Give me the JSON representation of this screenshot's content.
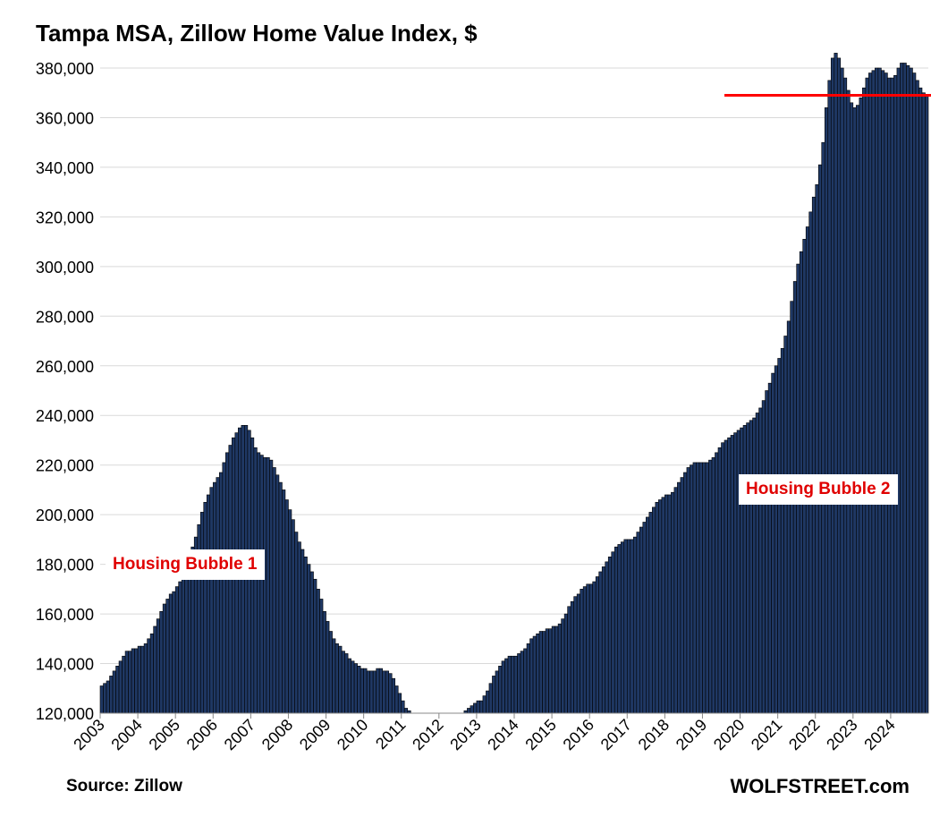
{
  "chart_data": {
    "type": "bar",
    "title": "Tampa MSA, Zillow Home Value Index, $",
    "xlabel": "",
    "ylabel": "",
    "ylim": [
      120000,
      380000
    ],
    "yticks": [
      "120,000",
      "140,000",
      "160,000",
      "180,000",
      "200,000",
      "220,000",
      "240,000",
      "260,000",
      "280,000",
      "300,000",
      "320,000",
      "340,000",
      "360,000",
      "380,000"
    ],
    "ytick_values": [
      120000,
      140000,
      160000,
      180000,
      200000,
      220000,
      240000,
      260000,
      280000,
      300000,
      320000,
      340000,
      360000,
      380000
    ],
    "xticks": [
      "2003",
      "2004",
      "2005",
      "2006",
      "2007",
      "2008",
      "2009",
      "2010",
      "2011",
      "2012",
      "2013",
      "2014",
      "2015",
      "2016",
      "2017",
      "2018",
      "2019",
      "2020",
      "2021",
      "2022",
      "2023",
      "2024"
    ],
    "grid": true,
    "start": "2003-01",
    "frequency": "monthly",
    "values_thousands": [
      131,
      132,
      133,
      135,
      137,
      139,
      141,
      143,
      145,
      145,
      146,
      146,
      147,
      147,
      148,
      150,
      152,
      155,
      158,
      161,
      164,
      166,
      168,
      169,
      171,
      173,
      175,
      178,
      182,
      187,
      191,
      196,
      201,
      205,
      208,
      211,
      213,
      215,
      217,
      221,
      225,
      228,
      231,
      233,
      235,
      236,
      236,
      234,
      231,
      227,
      225,
      224,
      223,
      223,
      222,
      219,
      216,
      213,
      210,
      206,
      202,
      198,
      193,
      189,
      186,
      183,
      180,
      177,
      174,
      170,
      166,
      161,
      157,
      153,
      150,
      148,
      147,
      145,
      144,
      142,
      141,
      140,
      139,
      138,
      138,
      137,
      137,
      137,
      138,
      138,
      137,
      137,
      136,
      134,
      131,
      128,
      125,
      122,
      121,
      120,
      119,
      118,
      117,
      116,
      116,
      115,
      115,
      115,
      115,
      115,
      115,
      115,
      115,
      116,
      118,
      120,
      121,
      122,
      123,
      124,
      125,
      125,
      127,
      129,
      132,
      135,
      137,
      139,
      141,
      142,
      143,
      143,
      143,
      144,
      145,
      146,
      148,
      150,
      151,
      152,
      153,
      153,
      154,
      154,
      155,
      155,
      156,
      158,
      160,
      163,
      165,
      167,
      168,
      170,
      171,
      172,
      172,
      173,
      175,
      177,
      179,
      181,
      183,
      185,
      187,
      188,
      189,
      190,
      190,
      190,
      191,
      193,
      195,
      197,
      199,
      201,
      203,
      205,
      206,
      207,
      208,
      208,
      209,
      211,
      213,
      215,
      217,
      219,
      220,
      221,
      221,
      221,
      221,
      221,
      222,
      223,
      225,
      227,
      229,
      230,
      231,
      232,
      233,
      234,
      235,
      236,
      237,
      238,
      239,
      241,
      243,
      246,
      250,
      253,
      257,
      260,
      263,
      267,
      272,
      278,
      286,
      294,
      301,
      306,
      311,
      316,
      322,
      328,
      333,
      341,
      350,
      364,
      375,
      384,
      386,
      384,
      380,
      376,
      371,
      366,
      364,
      365,
      368,
      372,
      376,
      378,
      379,
      380,
      380,
      379,
      378,
      376,
      376,
      377,
      380,
      382,
      382,
      381,
      380,
      378,
      375,
      372,
      370,
      369
    ],
    "reference_line": {
      "value": 369000,
      "from": "2019-08",
      "color": "#ff0000"
    },
    "annotations": [
      "Housing Bubble 1",
      "Housing Bubble 2"
    ],
    "bar_color": "#1f3864",
    "annotation_color": "#e00000"
  },
  "footer": {
    "source": "Source: Zillow",
    "brand": "WOLFSTREET.com"
  }
}
